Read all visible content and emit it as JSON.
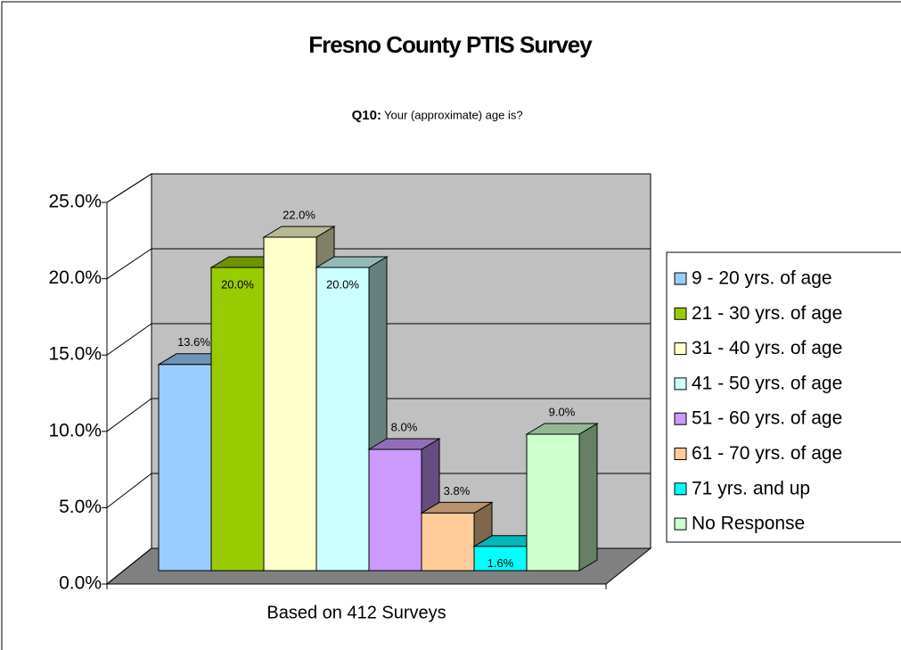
{
  "chart_data": {
    "type": "bar3d",
    "title": "Fresno County PTIS Survey",
    "question": "Q10:",
    "subtitle": "Your (approximate) age is?",
    "categories": [
      "Based on 412 Surveys"
    ],
    "series": [
      {
        "name": "9 - 20 yrs. of age",
        "color": "#99ccff",
        "values": [
          13.6
        ],
        "value_labels": [
          "13.6%"
        ]
      },
      {
        "name": "21 - 30 yrs. of age",
        "color": "#99cc00",
        "values": [
          20.0
        ],
        "value_labels": [
          "20.0%"
        ]
      },
      {
        "name": "31 - 40 yrs. of age",
        "color": "#ffffcc",
        "values": [
          22.0
        ],
        "value_labels": [
          "22.0%"
        ]
      },
      {
        "name": "41 - 50 yrs. of age",
        "color": "#ccffff",
        "values": [
          20.0
        ],
        "value_labels": [
          "20.0%"
        ]
      },
      {
        "name": "51 - 60 yrs. of age",
        "color": "#cc99ff",
        "values": [
          8.0
        ],
        "value_labels": [
          "8.0%"
        ]
      },
      {
        "name": "61 - 70 yrs. of age",
        "color": "#ffcc99",
        "values": [
          3.8
        ],
        "value_labels": [
          "3.8%"
        ]
      },
      {
        "name": "71 yrs. and up",
        "color": "#00ffff",
        "values": [
          1.6
        ],
        "value_labels": [
          "1.6%"
        ]
      },
      {
        "name": "No Response",
        "color": "#ccffcc",
        "values": [
          9.0
        ],
        "value_labels": [
          "9.0%"
        ]
      }
    ],
    "ylim": [
      0,
      25
    ],
    "yticks": [
      {
        "value": 0,
        "label": "0.0%"
      },
      {
        "value": 5,
        "label": "5.0%"
      },
      {
        "value": 10,
        "label": "10.0%"
      },
      {
        "value": 15,
        "label": "15.0%"
      },
      {
        "value": 20,
        "label": "20.0%"
      },
      {
        "value": 25,
        "label": "25.0%"
      }
    ],
    "grid": true,
    "legend": "right"
  }
}
